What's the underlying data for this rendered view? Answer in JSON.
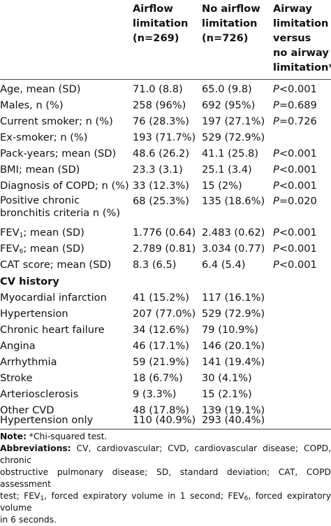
{
  "header": {
    "col1": [
      "Airflow",
      "limitation",
      "(n=269)"
    ],
    "col2": [
      "No airflow",
      "limitation",
      "(n=726)"
    ],
    "col3": [
      "Airway",
      "limitation",
      "versus",
      "no airway",
      "limitation*"
    ]
  },
  "rows": [
    {
      "label": "Age, mean (SD)",
      "v1": "71.0 (8.8)",
      "v2": "65.0 (9.8)",
      "p": "P",
      "pv": "<0.001"
    },
    {
      "label": "Males, n (%)",
      "v1": "258 (96%)",
      "v2": "692 (95%)",
      "p": "P",
      "pv": "=0.689"
    },
    {
      "label": "Current smoker; n (%)",
      "v1": "76 (28.3%)",
      "v2": "197 (27.1%)",
      "p": "P",
      "pv": "=0.726"
    },
    {
      "label": "Ex-smoker; n (%)",
      "v1": "193 (71.7%)",
      "v2": "529 (72.9%)",
      "p": "",
      "pv": ""
    },
    {
      "label": "Pack-years; mean (SD)",
      "v1": "48.6 (26.2)",
      "v2": "41.1 (25.8)",
      "p": "P",
      "pv": "<0.001"
    },
    {
      "label": "BMI; mean (SD)",
      "v1": "23.3 (3.1)",
      "v2": "25.1 (3.4)",
      "p": "P",
      "pv": "<0.001"
    },
    {
      "label": "Diagnosis of COPD; n (%)",
      "v1": "33 (12.3%)",
      "v2": "15 (2%)",
      "p": "P",
      "pv": "<0.001"
    },
    {
      "label": "Positive chronic",
      "label2": "bronchitis criteria n (%)",
      "v1": "68 (25.3%)",
      "v2": "135 (18.6%)",
      "p": "P",
      "pv": "=0.020"
    },
    {
      "label": "FEV",
      "sub": "1",
      "label_rest": "; mean (SD)",
      "v1": "1.776 (0.64)",
      "v2": "2.483 (0.62)",
      "p": "P",
      "pv": "<0.001"
    },
    {
      "label": "FEV",
      "sub": "6",
      "label_rest": "; mean (SD)",
      "v1": "2.789 (0.81)",
      "v2": "3.034 (0.77)",
      "p": "P",
      "pv": "<0.001"
    },
    {
      "label": "CAT score; mean (SD)",
      "v1": "8.3 (6.5)",
      "v2": "6.4 (5.4)",
      "p": "P",
      "pv": "<0.001"
    }
  ],
  "cv_history_title": "CV history",
  "cv_rows": [
    {
      "label": "Myocardial infarction",
      "v1": "41 (15.2%)",
      "v2": "117 (16.1%)"
    },
    {
      "label": "Hypertension",
      "v1": "207 (77.0%)",
      "v2": "529 (72.9%)"
    },
    {
      "label": "Chronic heart failure",
      "v1": "34 (12.6%)",
      "v2": "79 (10.9%)"
    },
    {
      "label": "Angina",
      "v1": "46 (17.1%)",
      "v2": "146 (20.1%)"
    },
    {
      "label": "Arrhythmia",
      "v1": "59 (21.9%)",
      "v2": "141 (19.4%)"
    },
    {
      "label": "Stroke",
      "v1": "18 (6.7%)",
      "v2": "30 (4.1%)"
    },
    {
      "label": "Arteriosclerosis",
      "v1": "9 (3.3%)",
      "v2": "15 (2.1%)"
    },
    {
      "label": "Other CVD",
      "v1": "48 (17.8%)",
      "v2": "139 (19.1%)"
    },
    {
      "label": "Hypertension only",
      "v1": "110 (40.9%)",
      "v2": "293 (40.4%)"
    }
  ],
  "notes": {
    "note_label": "Note:",
    "note_text": " *Chi-squared test.",
    "abbr_label": "Abbreviations:",
    "abbr_line1": " CV, cardiovascular; CVD, cardiovascular disease; COPD, chronic",
    "abbr_line2": "obstructive pulmonary disease; SD, standard deviation; CAT, COPD assessment",
    "abbr_line3_a": "test; FEV",
    "abbr_line3_sub1": "1",
    "abbr_line3_b": ", forced expiratory volume in 1 second; FEV",
    "abbr_line3_sub2": "6",
    "abbr_line3_c": ", forced expiratory volume",
    "abbr_line4": "in 6 seconds."
  }
}
